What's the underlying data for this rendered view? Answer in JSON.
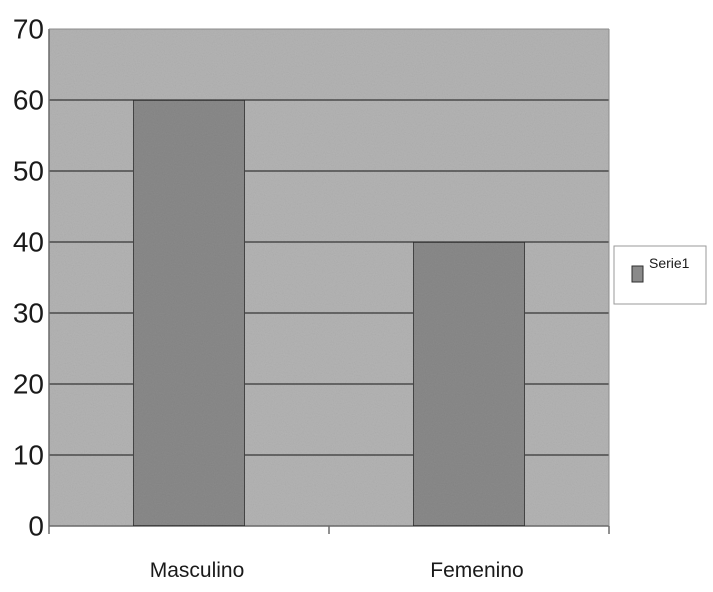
{
  "chart_data": {
    "type": "bar",
    "categories": [
      "Masculino",
      "Femenino"
    ],
    "series": [
      {
        "name": "Serie1",
        "values": [
          60,
          40
        ]
      }
    ],
    "ylim": [
      0,
      70
    ],
    "yticks": [
      "0",
      "10",
      "20",
      "30",
      "40",
      "50",
      "60",
      "70"
    ],
    "grid": true,
    "legend": {
      "position": "right"
    },
    "colors": {
      "plot_background": "#b4b4b4",
      "bar_fill": "#8a8a8a",
      "bar_stroke": "#2e2e2e",
      "gridline": "#4a4a4a",
      "axis": "#6a6a6a",
      "text": "#1a1a1a"
    }
  }
}
